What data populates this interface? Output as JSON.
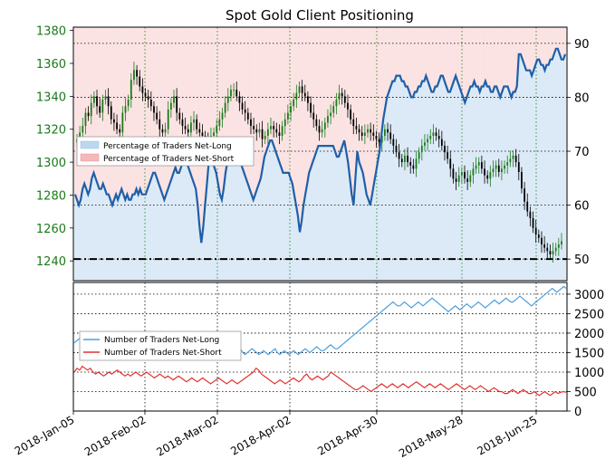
{
  "chart_data": [
    {
      "type": "candlestick+line",
      "title": "Spot Gold Client Positioning",
      "x_dates": [
        "2018-Jan-05",
        "2018-Feb-02",
        "2018-Mar-02",
        "2018-Apr-02",
        "2018-Apr-30",
        "2018-May-28",
        "2018-Jun-25"
      ],
      "price_axis": {
        "ticks": [
          1240,
          1260,
          1280,
          1300,
          1320,
          1340,
          1360,
          1380
        ],
        "range": [
          1228,
          1382
        ],
        "color": "#1a7a1a"
      },
      "percent_axis": {
        "ticks": [
          50,
          60,
          70,
          80,
          90
        ],
        "range": [
          46,
          93
        ]
      },
      "legend": [
        {
          "label": "Percentage of Traders Net-Long",
          "color": "#bcd8f0"
        },
        {
          "label": "Percentage of Traders Net-Short",
          "color": "#f5b8b8"
        }
      ],
      "net_long_pct_series": [
        62,
        61,
        60,
        61,
        63,
        64,
        63,
        62,
        63,
        65,
        66,
        65,
        64,
        63,
        63,
        64,
        63,
        62,
        62,
        61,
        60,
        61,
        62,
        61,
        62,
        63,
        62,
        61,
        62,
        61,
        61,
        62,
        62,
        63,
        62,
        63,
        62,
        62,
        62,
        63,
        64,
        65,
        66,
        66,
        65,
        64,
        63,
        62,
        61,
        62,
        63,
        64,
        65,
        66,
        67,
        66,
        66,
        67,
        68,
        69,
        68,
        67,
        66,
        65,
        64,
        63,
        60,
        56,
        53,
        56,
        60,
        64,
        68,
        69,
        68,
        67,
        66,
        64,
        62,
        61,
        63,
        66,
        68,
        69,
        70,
        71,
        70,
        69,
        69,
        68,
        67,
        66,
        65,
        64,
        63,
        62,
        61,
        62,
        63,
        64,
        65,
        67,
        69,
        70,
        71,
        72,
        72,
        71,
        70,
        69,
        68,
        67,
        66,
        66,
        66,
        66,
        65,
        64,
        62,
        60,
        58,
        55,
        57,
        60,
        62,
        64,
        66,
        67,
        68,
        69,
        70,
        71,
        71,
        71,
        71,
        71,
        71,
        71,
        71,
        71,
        70,
        69,
        69,
        70,
        71,
        72,
        70,
        68,
        65,
        62,
        60,
        65,
        70,
        68,
        67,
        66,
        64,
        62,
        61,
        60,
        62,
        64,
        66,
        68,
        70,
        73,
        76,
        78,
        80,
        81,
        82,
        83,
        83,
        84,
        84,
        84,
        83,
        83,
        82,
        82,
        81,
        80,
        80,
        81,
        81,
        82,
        82,
        83,
        83,
        84,
        83,
        82,
        81,
        81,
        82,
        82,
        83,
        84,
        84,
        83,
        82,
        81,
        81,
        82,
        83,
        84,
        83,
        82,
        81,
        80,
        79,
        80,
        81,
        82,
        82,
        83,
        82,
        82,
        81,
        82,
        82,
        83,
        82,
        82,
        81,
        81,
        82,
        82,
        81,
        80,
        81,
        82,
        82,
        82,
        81,
        80,
        81,
        81,
        82,
        88,
        88,
        87,
        86,
        85,
        85,
        85,
        84,
        85,
        86,
        87,
        87,
        86,
        86,
        85,
        86,
        86,
        87,
        87,
        88,
        89,
        89,
        88,
        87,
        87,
        88
      ],
      "price_ohlc_summary_close": [
        1314,
        1318,
        1322,
        1330,
        1328,
        1336,
        1340,
        1334,
        1330,
        1338,
        1340,
        1334,
        1326,
        1324,
        1320,
        1318,
        1330,
        1334,
        1338,
        1350,
        1356,
        1352,
        1346,
        1342,
        1340,
        1338,
        1334,
        1330,
        1326,
        1320,
        1318,
        1320,
        1332,
        1336,
        1340,
        1330,
        1326,
        1322,
        1320,
        1318,
        1324,
        1326,
        1320,
        1318,
        1316,
        1314,
        1310,
        1316,
        1318,
        1322,
        1326,
        1330,
        1336,
        1340,
        1344,
        1344,
        1340,
        1336,
        1332,
        1330,
        1326,
        1322,
        1320,
        1318,
        1320,
        1314,
        1316,
        1320,
        1322,
        1320,
        1318,
        1316,
        1322,
        1326,
        1330,
        1334,
        1338,
        1342,
        1346,
        1342,
        1340,
        1336,
        1330,
        1326,
        1322,
        1318,
        1320,
        1324,
        1328,
        1330,
        1334,
        1338,
        1342,
        1340,
        1336,
        1332,
        1326,
        1322,
        1320,
        1318,
        1316,
        1318,
        1320,
        1318,
        1316,
        1314,
        1312,
        1316,
        1320,
        1318,
        1314,
        1310,
        1306,
        1302,
        1300,
        1304,
        1300,
        1298,
        1296,
        1302,
        1306,
        1310,
        1312,
        1314,
        1316,
        1318,
        1316,
        1314,
        1310,
        1306,
        1302,
        1296,
        1290,
        1288,
        1292,
        1294,
        1290,
        1288,
        1292,
        1296,
        1298,
        1300,
        1296,
        1292,
        1290,
        1294,
        1296,
        1298,
        1294,
        1296,
        1298,
        1300,
        1302,
        1304,
        1300,
        1294,
        1284,
        1276,
        1270,
        1266,
        1260,
        1256,
        1254,
        1250,
        1248,
        1246,
        1244,
        1246,
        1248,
        1250,
        1252
      ],
      "net_long_count_series": [
        1750,
        1800,
        1850,
        1900,
        1900,
        1850,
        1800,
        1850,
        1900,
        1950,
        1900,
        1850,
        1800,
        1750,
        1800,
        1850,
        1900,
        1850,
        1800,
        1750,
        1700,
        1750,
        1800,
        1850,
        1900,
        1850,
        1800,
        1750,
        1750,
        1800,
        1850,
        1800,
        1750,
        1700,
        1750,
        1800,
        1850,
        1900,
        1850,
        1800,
        1850,
        1900,
        1950,
        1900,
        1850,
        1850,
        1800,
        1850,
        1900,
        1950,
        2000,
        1950,
        1900,
        1850,
        1800,
        1750,
        1800,
        1850,
        1900,
        1950,
        2000,
        1950,
        1900,
        1850,
        1800,
        1800,
        1750,
        1700,
        1650,
        1600,
        1650,
        1700,
        1600,
        1500,
        1450,
        1500,
        1550,
        1600,
        1550,
        1500,
        1450,
        1500,
        1550,
        1500,
        1450,
        1500,
        1550,
        1600,
        1500,
        1450,
        1500,
        1550,
        1500,
        1450,
        1500,
        1550,
        1500,
        1450,
        1500,
        1550,
        1600,
        1550,
        1500,
        1550,
        1600,
        1650,
        1600,
        1550,
        1550,
        1600,
        1650,
        1700,
        1650,
        1600,
        1600,
        1650,
        1700,
        1750,
        1800,
        1850,
        1900,
        1950,
        2000,
        2050,
        2100,
        2150,
        2200,
        2250,
        2300,
        2350,
        2400,
        2450,
        2500,
        2550,
        2600,
        2650,
        2700,
        2750,
        2800,
        2750,
        2700,
        2700,
        2750,
        2800,
        2750,
        2700,
        2650,
        2700,
        2750,
        2800,
        2750,
        2700,
        2750,
        2800,
        2850,
        2900,
        2850,
        2800,
        2750,
        2700,
        2650,
        2600,
        2550,
        2600,
        2650,
        2700,
        2650,
        2600,
        2650,
        2700,
        2750,
        2700,
        2650,
        2700,
        2750,
        2800,
        2750,
        2700,
        2650,
        2700,
        2750,
        2800,
        2850,
        2800,
        2750,
        2800,
        2850,
        2900,
        2850,
        2800,
        2800,
        2850,
        2900,
        2950,
        2900,
        2850,
        2800,
        2750,
        2700,
        2750,
        2800,
        2850,
        2900,
        2950,
        3000,
        3050,
        3100,
        3150,
        3100,
        3050,
        3100,
        3150,
        3200,
        3150
      ],
      "net_short_count_series": [
        1000,
        1100,
        1050,
        1150,
        1100,
        1050,
        1100,
        1000,
        950,
        1000,
        950,
        900,
        950,
        1000,
        950,
        1000,
        1050,
        1000,
        950,
        900,
        950,
        900,
        950,
        1000,
        950,
        900,
        950,
        1000,
        950,
        900,
        850,
        900,
        950,
        900,
        850,
        900,
        850,
        800,
        850,
        900,
        850,
        800,
        750,
        800,
        850,
        800,
        750,
        800,
        850,
        800,
        750,
        700,
        750,
        800,
        850,
        800,
        750,
        700,
        750,
        800,
        750,
        700,
        750,
        800,
        850,
        900,
        950,
        1000,
        1100,
        1050,
        950,
        900,
        850,
        800,
        750,
        700,
        750,
        800,
        750,
        700,
        750,
        800,
        850,
        800,
        750,
        800,
        900,
        950,
        850,
        800,
        850,
        900,
        850,
        800,
        850,
        900,
        1000,
        950,
        900,
        850,
        800,
        750,
        700,
        650,
        600,
        550,
        550,
        600,
        650,
        600,
        550,
        500,
        550,
        600,
        650,
        700,
        650,
        600,
        650,
        700,
        650,
        600,
        650,
        700,
        650,
        600,
        650,
        700,
        750,
        700,
        650,
        600,
        650,
        700,
        650,
        600,
        650,
        700,
        650,
        600,
        550,
        600,
        650,
        700,
        650,
        600,
        550,
        600,
        650,
        600,
        550,
        600,
        650,
        600,
        550,
        500,
        550,
        600,
        550,
        500,
        500,
        450,
        450,
        500,
        550,
        500,
        450,
        500,
        550,
        500,
        450,
        450,
        500,
        450,
        400,
        450,
        500,
        450,
        400,
        450,
        500,
        450,
        480,
        500,
        480
      ],
      "lower_axis": {
        "ticks": [
          0,
          500,
          1000,
          1500,
          2000,
          2500,
          3000
        ],
        "range": [
          0,
          3300
        ]
      },
      "lower_legend": [
        {
          "label": "Number of Traders Net-Long",
          "color": "#4a9fe0"
        },
        {
          "label": "Number of Traders Net-Short",
          "color": "#e03030"
        }
      ],
      "colors": {
        "net_long_pct_line": "#1f5fa8",
        "bull_candle": "#1a7a1a",
        "bear_candle": "#000000",
        "area_long": "#dceaf7",
        "area_short": "#fbe3e3"
      }
    }
  ]
}
